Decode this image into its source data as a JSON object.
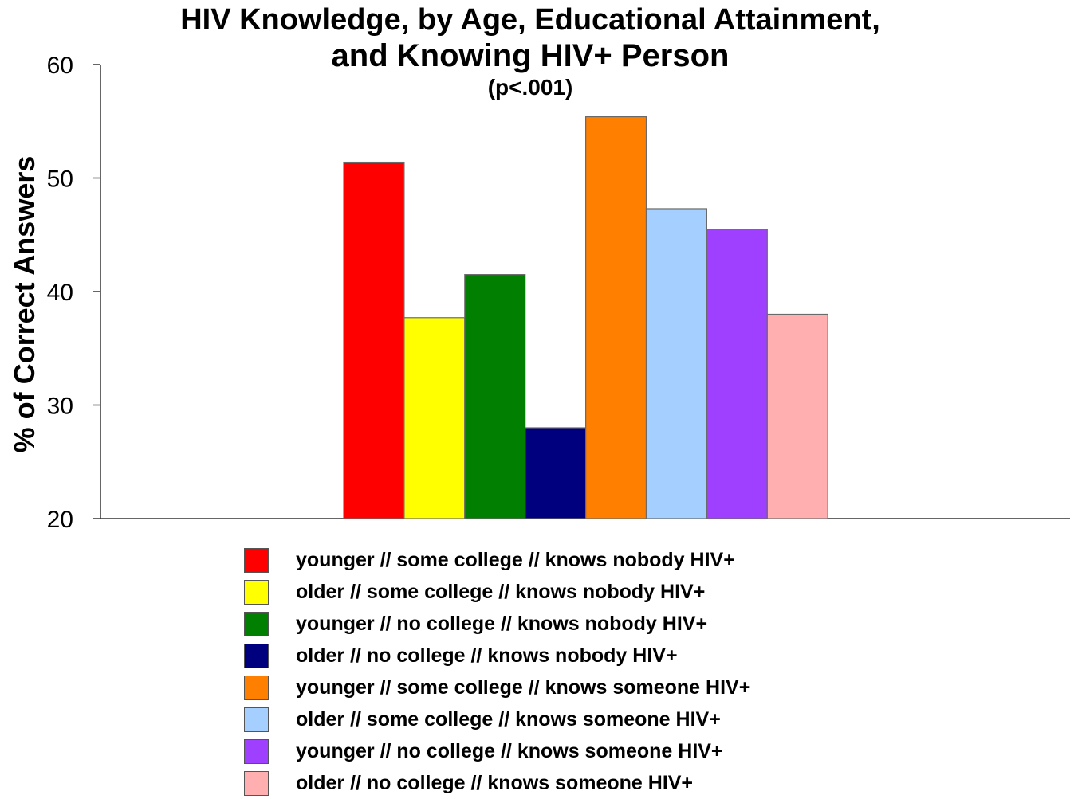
{
  "chart_data": {
    "type": "bar",
    "title": "HIV Knowledge, by Age, Educational Attainment,",
    "title_line2": "and Knowing HIV+ Person",
    "subtitle": "(p<.001)",
    "ylabel": "% of Correct Answers",
    "xlabel": "",
    "ylim": [
      20,
      60
    ],
    "yticks": [
      20,
      30,
      40,
      50,
      60
    ],
    "grid": false,
    "legend_position": "bottom",
    "series": [
      {
        "name": "younger // some college // knows nobody HIV+",
        "value": 51.4,
        "color": "#ff0000"
      },
      {
        "name": "older // some college // knows nobody HIV+",
        "value": 37.7,
        "color": "#ffff00"
      },
      {
        "name": "younger // no college // knows nobody HIV+",
        "value": 41.5,
        "color": "#007f00"
      },
      {
        "name": "older // no college // knows nobody HIV+",
        "value": 28.0,
        "color": "#00007f"
      },
      {
        "name": "younger // some college // knows someone HIV+",
        "value": 55.4,
        "color": "#ff7f00"
      },
      {
        "name": "older // some college // knows someone HIV+",
        "value": 47.3,
        "color": "#a5cfff"
      },
      {
        "name": "younger // no college // knows someone HIV+",
        "value": 45.5,
        "color": "#9f3fff"
      },
      {
        "name": "older // no college // knows someone HIV+",
        "value": 38.0,
        "color": "#ffafaf"
      }
    ]
  }
}
